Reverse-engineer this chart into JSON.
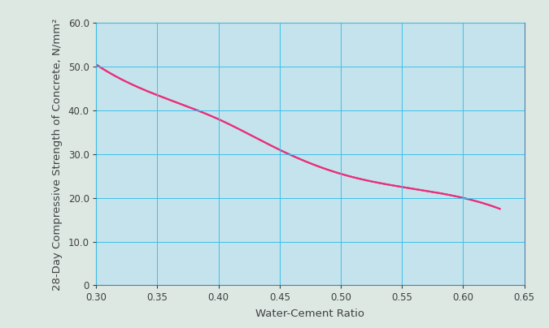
{
  "x_data": [
    0.3,
    0.35,
    0.4,
    0.45,
    0.5,
    0.55,
    0.6,
    0.63
  ],
  "y_data": [
    50.5,
    43.5,
    38.0,
    31.0,
    25.5,
    22.5,
    20.0,
    17.5
  ],
  "xlim": [
    0.3,
    0.65
  ],
  "ylim": [
    0,
    60
  ],
  "xticks": [
    0.3,
    0.35,
    0.4,
    0.45,
    0.5,
    0.55,
    0.6,
    0.65
  ],
  "yticks": [
    0,
    10.0,
    20.0,
    30.0,
    40.0,
    50.0,
    60.0
  ],
  "xlabel": "Water-Cement Ratio",
  "ylabel": "28-Day Compressive Strength of Concrete, N/mm²",
  "line_color": "#e8317a",
  "line_width": 1.5,
  "background_color": "#dde8e3",
  "plot_bg_color": "#c5e3ed",
  "grid_color": "#3cc0e8",
  "grid_linewidth": 0.7,
  "axis_color": "#5080a0",
  "tick_color": "#404040",
  "label_fontsize": 9.5,
  "tick_fontsize": 8.5
}
